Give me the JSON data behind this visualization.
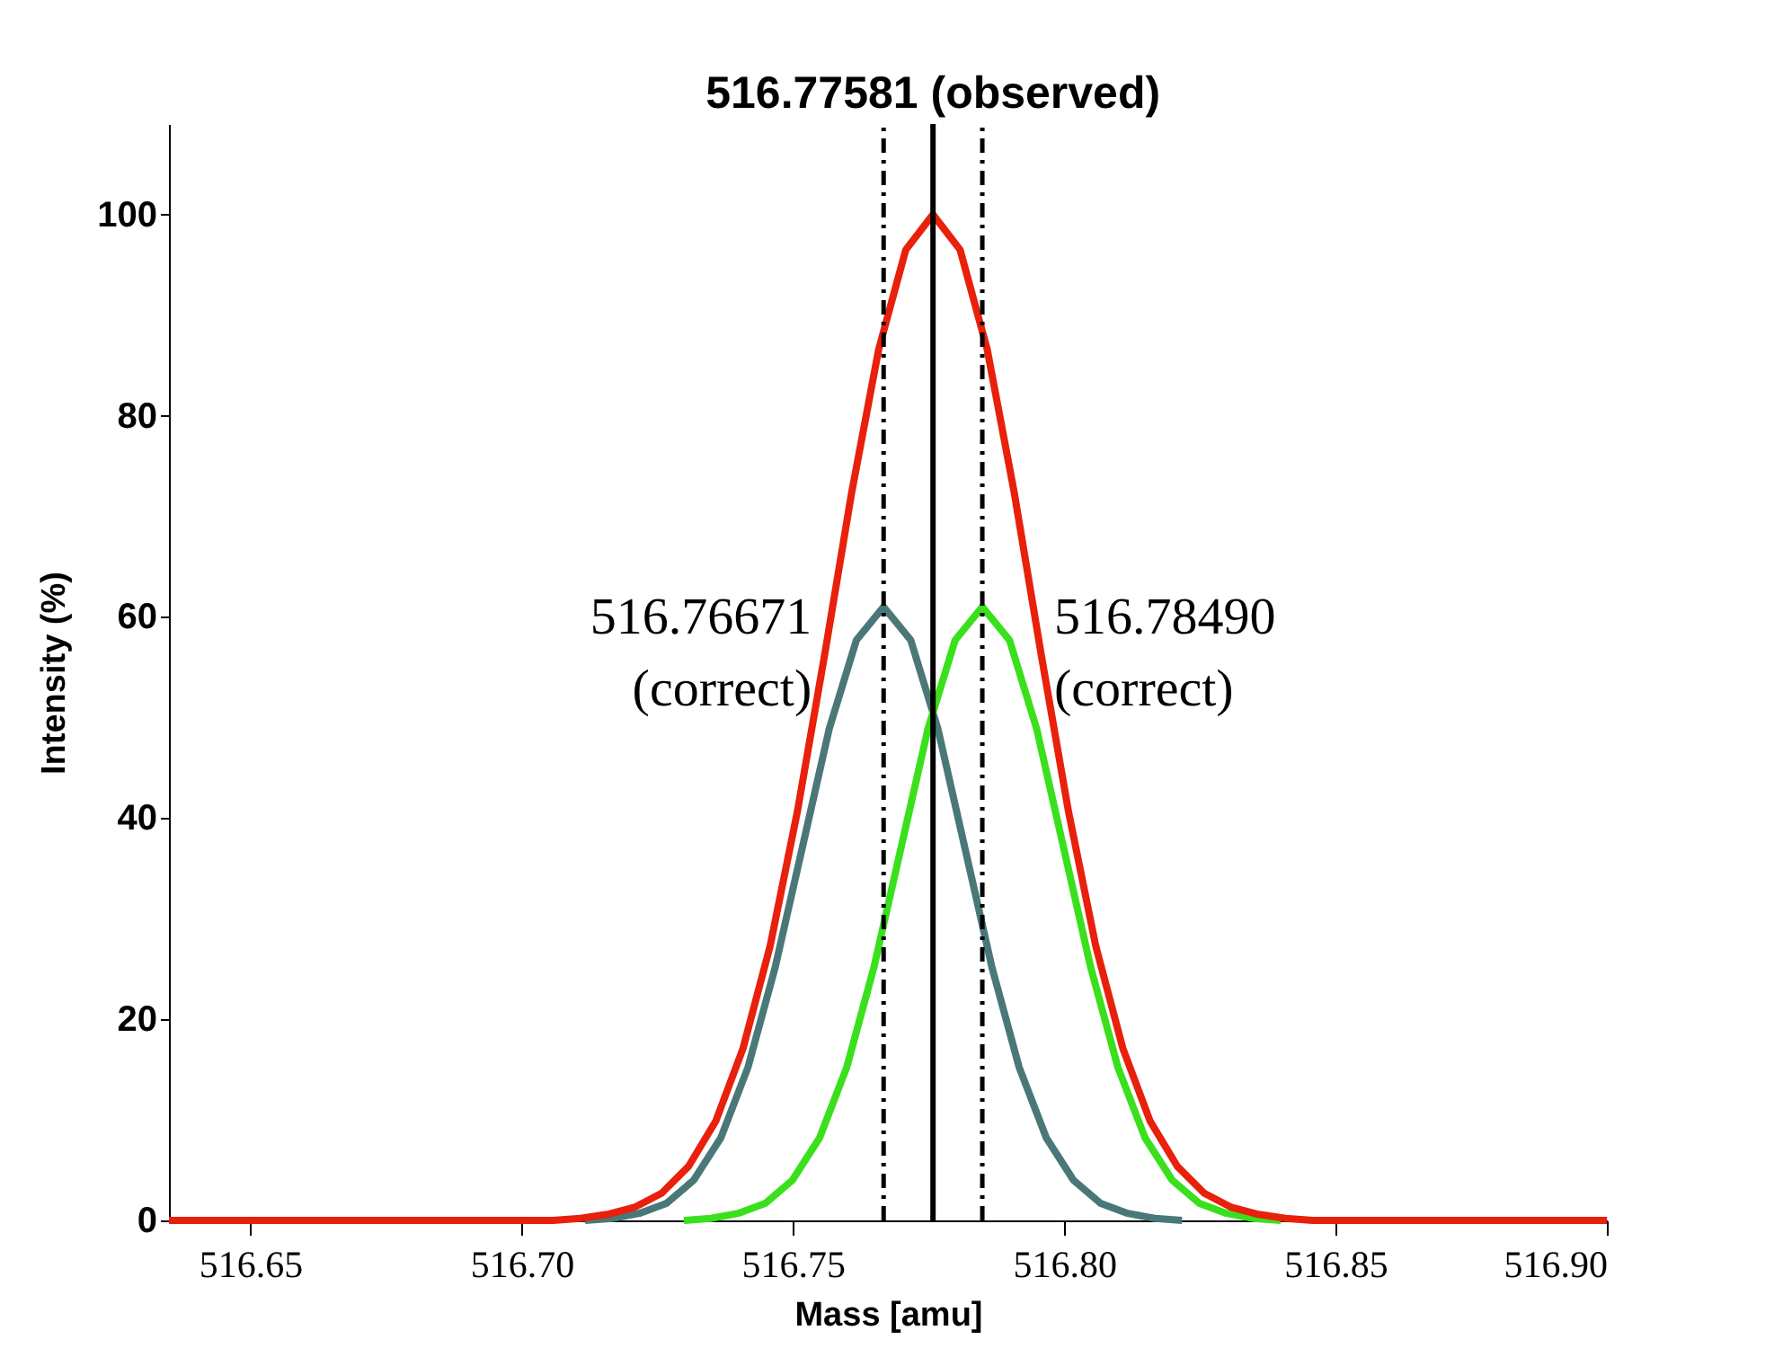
{
  "chart_data": {
    "type": "line",
    "xlabel": "Mass [amu]",
    "ylabel": "Intensity (%)",
    "xlim": [
      516.635,
      516.9
    ],
    "ylim": [
      0,
      109
    ],
    "xticks": [
      516.65,
      {
        "value": 516.7,
        "label": "516.70"
      },
      516.75,
      {
        "value": 516.8,
        "label": "516.80"
      },
      516.85,
      {
        "value": 516.9,
        "label": "516.90"
      }
    ],
    "yticks": [
      0,
      20,
      40,
      60,
      80,
      100
    ],
    "grid": false,
    "marker": "none",
    "line_style": "solid",
    "series": [
      {
        "color": "#4a7878",
        "x": [
          516.7117,
          516.7167,
          516.7217,
          516.7267,
          516.7317,
          516.7367,
          516.7417,
          516.7467,
          516.7517,
          516.7567,
          516.7617,
          516.7667,
          516.7717,
          516.7767,
          516.7817,
          516.7867,
          516.7917,
          516.7967,
          516.8017,
          516.8067,
          516.8117,
          516.8167,
          516.8217
        ],
        "values": [
          0,
          0.2,
          0.7,
          1.7,
          4.0,
          8.2,
          15.2,
          25.1,
          37.0,
          48.9,
          57.7,
          61,
          57.7,
          48.9,
          37.0,
          25.1,
          15.2,
          8.2,
          4.0,
          1.7,
          0.7,
          0.2,
          0
        ]
      },
      {
        "color": "#3ae01c",
        "x": [
          516.7299,
          516.7349,
          516.7399,
          516.7449,
          516.7499,
          516.7549,
          516.7599,
          516.7649,
          516.7699,
          516.7749,
          516.7799,
          516.7849,
          516.7899,
          516.7949,
          516.7999,
          516.8049,
          516.8099,
          516.8149,
          516.8199,
          516.8249,
          516.8299,
          516.8349,
          516.8399
        ],
        "values": [
          0,
          0.2,
          0.7,
          1.7,
          4.0,
          8.2,
          15.2,
          25.1,
          37.0,
          48.9,
          57.7,
          61,
          57.7,
          48.9,
          37.0,
          25.1,
          15.2,
          8.2,
          4.0,
          1.7,
          0.7,
          0.2,
          0
        ]
      },
      {
        "color": "#e8200c",
        "x": [
          516.635,
          516.68,
          516.7,
          516.7058,
          516.7108,
          516.7158,
          516.7208,
          516.7258,
          516.7308,
          516.7358,
          516.7408,
          516.7458,
          516.7508,
          516.7558,
          516.7608,
          516.7658,
          516.7708,
          516.7758,
          516.7808,
          516.7858,
          516.7908,
          516.7958,
          516.8008,
          516.8058,
          516.8108,
          516.8158,
          516.8208,
          516.8258,
          516.8308,
          516.8358,
          516.8408,
          516.8458,
          516.86,
          516.9
        ],
        "values": [
          0,
          0,
          0,
          0,
          0.2,
          0.6,
          1.3,
          2.7,
          5.4,
          9.9,
          17.1,
          27.3,
          40.6,
          56.1,
          72.3,
          86.6,
          96.5,
          100,
          96.5,
          86.6,
          72.3,
          56.1,
          40.6,
          27.3,
          17.1,
          9.9,
          5.4,
          2.7,
          1.3,
          0.6,
          0.2,
          0,
          0,
          0
        ]
      }
    ],
    "ref_lines": [
      {
        "axis": "x",
        "value": 516.77581,
        "color": "#000000",
        "line_style": "solid"
      },
      {
        "axis": "x",
        "value": 516.76671,
        "color": "#000000",
        "line_style": "dashed"
      },
      {
        "axis": "x",
        "value": 516.7849,
        "color": "#000000",
        "line_style": "dashed"
      }
    ],
    "annotations": [
      {
        "text": "516.77581  (observed)",
        "x": 516.77581,
        "y": 100
      },
      {
        "text": "516.76671\n(correct)",
        "x": 516.76671,
        "y": 61
      },
      {
        "text": "516.78490\n(correct)",
        "x": 516.7849,
        "y": 61
      }
    ]
  }
}
